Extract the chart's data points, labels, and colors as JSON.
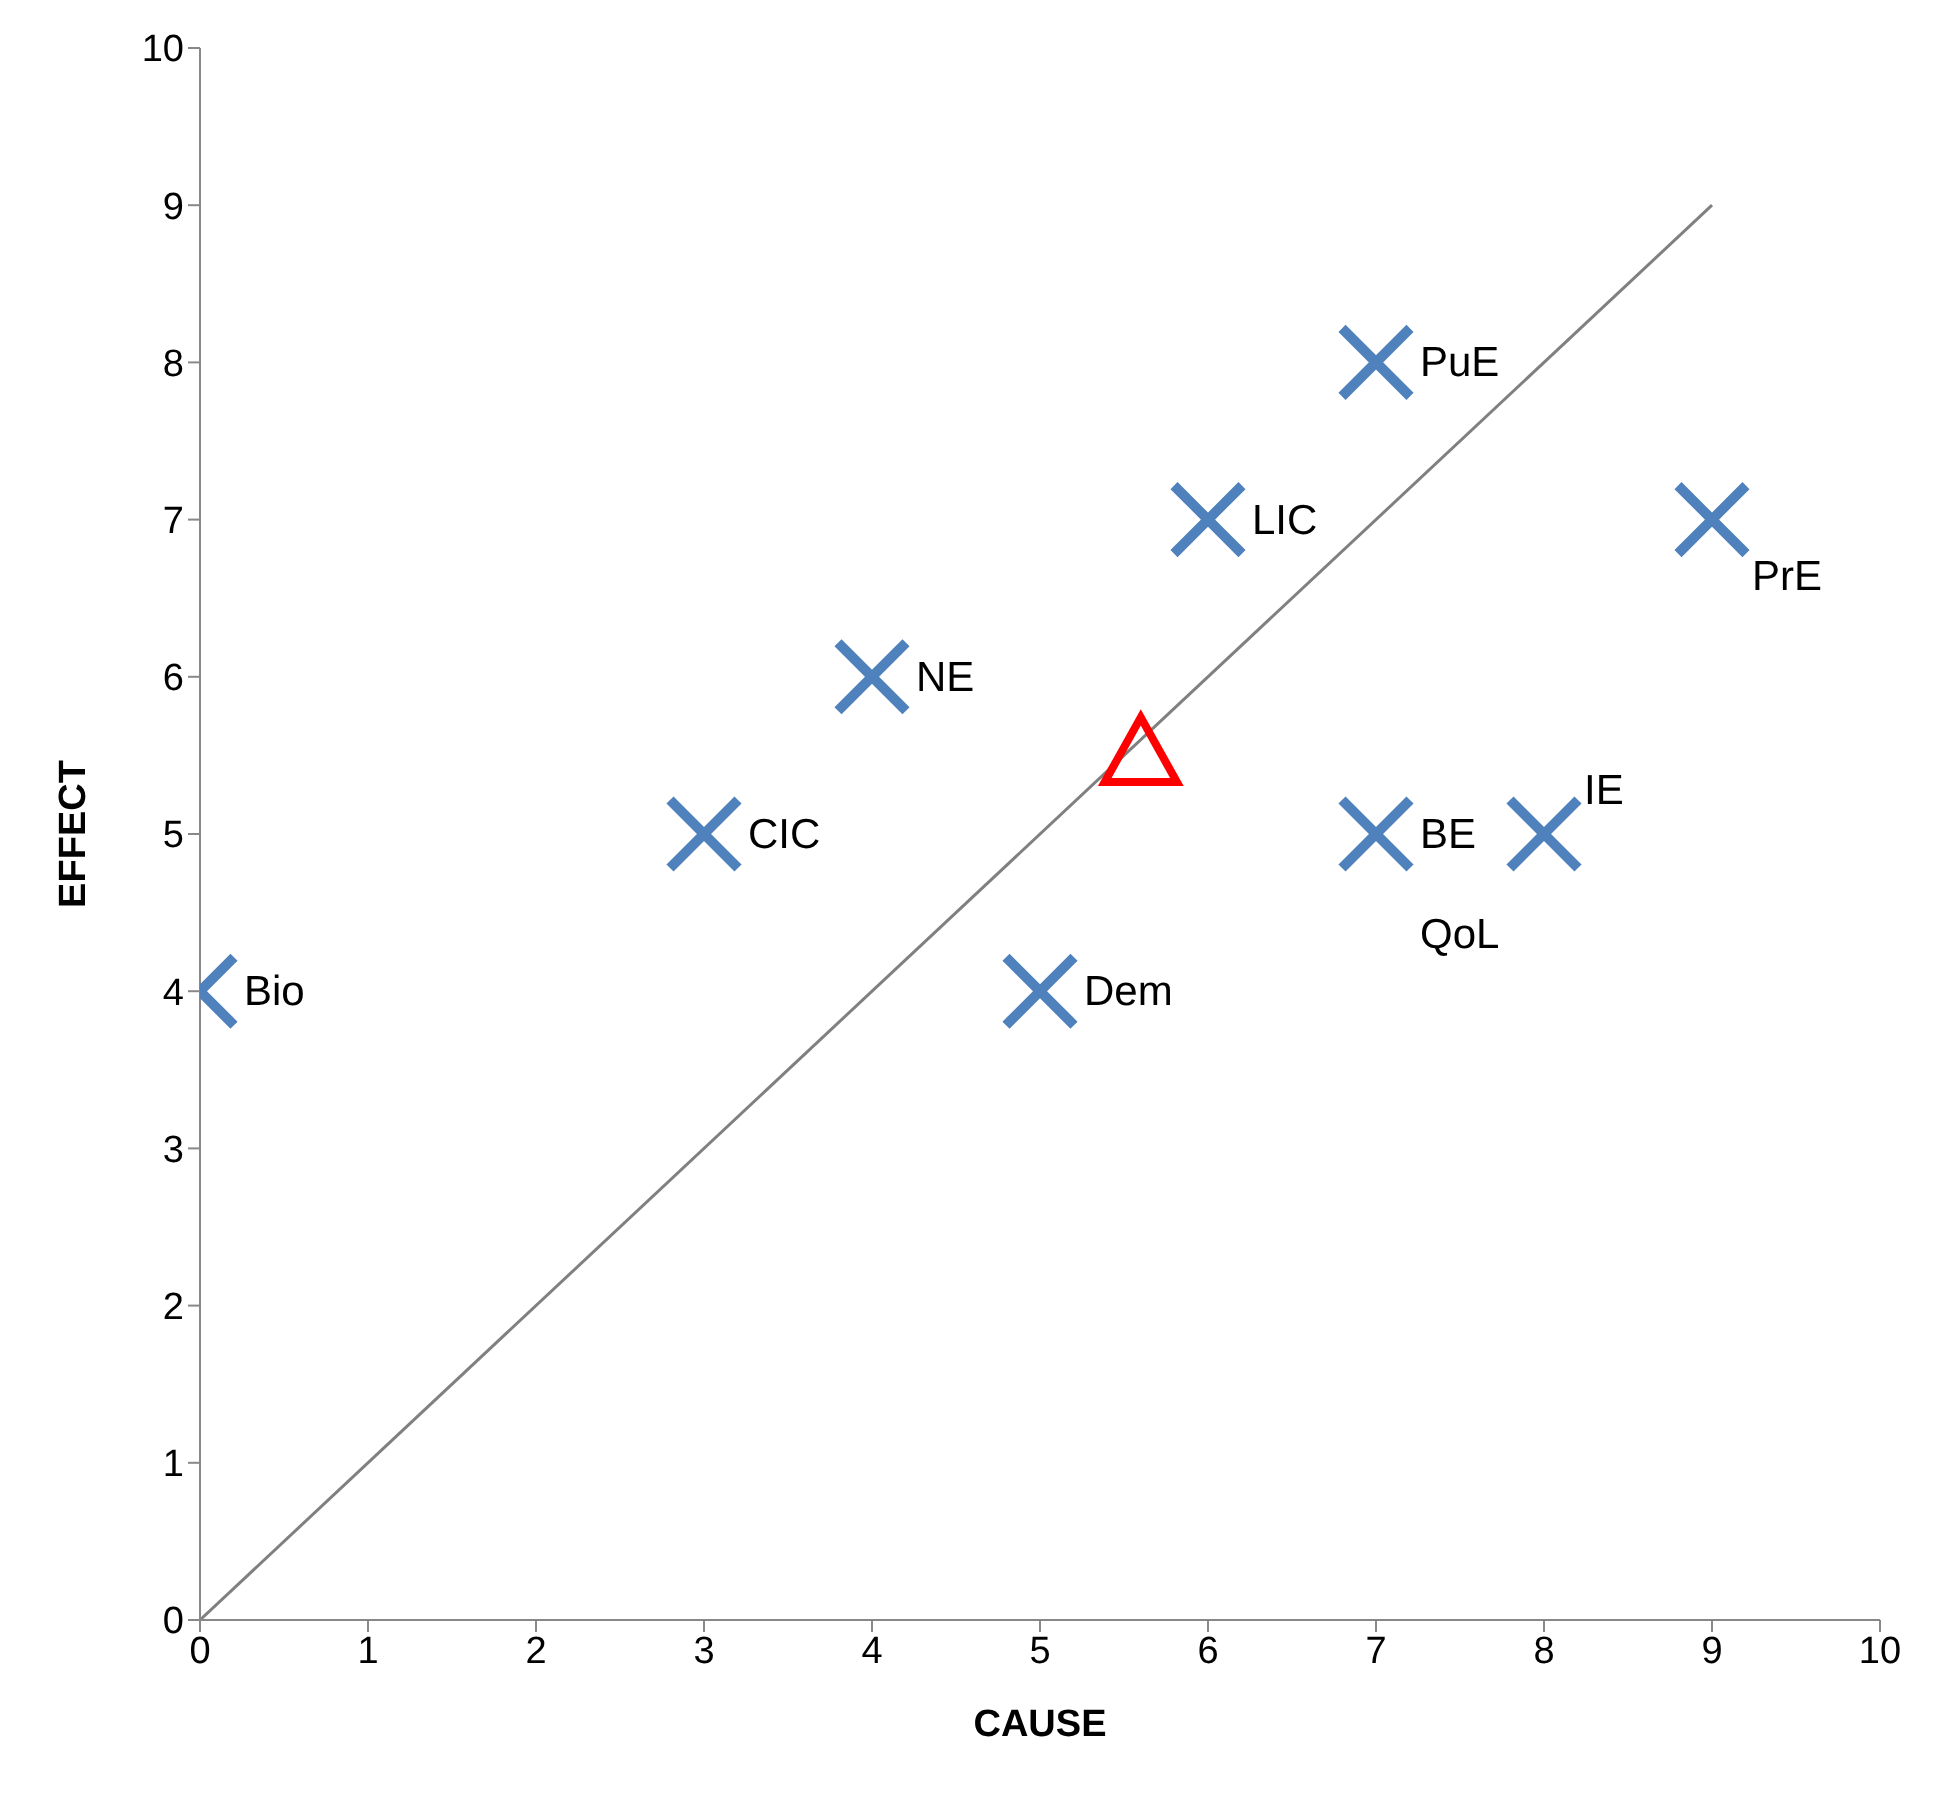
{
  "chart_data": {
    "type": "scatter",
    "xlabel": "CAUSE",
    "ylabel": "EFFECT",
    "xlim": [
      0,
      10
    ],
    "ylim": [
      0,
      10
    ],
    "xticks": [
      0,
      1,
      2,
      3,
      4,
      5,
      6,
      7,
      8,
      9,
      10
    ],
    "yticks": [
      0,
      1,
      2,
      3,
      4,
      5,
      6,
      7,
      8,
      9,
      10
    ],
    "grid": false,
    "legend": false,
    "series": [
      {
        "type": "line",
        "color": "#808080",
        "marker": "none",
        "line_style": "solid",
        "x": [
          0,
          9
        ],
        "values": [
          0,
          9
        ]
      },
      {
        "color": "#4f81bd",
        "marker": "cross",
        "x": [
          0,
          3,
          4,
          5,
          6,
          7,
          7,
          8,
          9
        ],
        "values": [
          4,
          5,
          6,
          4,
          7,
          8,
          5,
          5,
          7
        ]
      },
      {
        "color": "#ff0000",
        "marker": "triangle",
        "x": [
          5.6
        ],
        "values": [
          5.5
        ]
      }
    ],
    "annotations": [
      {
        "text": "Bio",
        "x": 0,
        "y": 4
      },
      {
        "text": "CIC",
        "x": 3,
        "y": 5
      },
      {
        "text": "NE",
        "x": 4,
        "y": 6
      },
      {
        "text": "Dem",
        "x": 5,
        "y": 4
      },
      {
        "text": "LIC",
        "x": 6,
        "y": 7
      },
      {
        "text": "PuE",
        "x": 7,
        "y": 8
      },
      {
        "text": "BE",
        "x": 7,
        "y": 5
      },
      {
        "text": "IE",
        "x": 8,
        "y": 5
      },
      {
        "text": "PrE",
        "x": 9,
        "y": 7
      },
      {
        "text": "QoL",
        "x": 7,
        "y": 5
      }
    ]
  }
}
